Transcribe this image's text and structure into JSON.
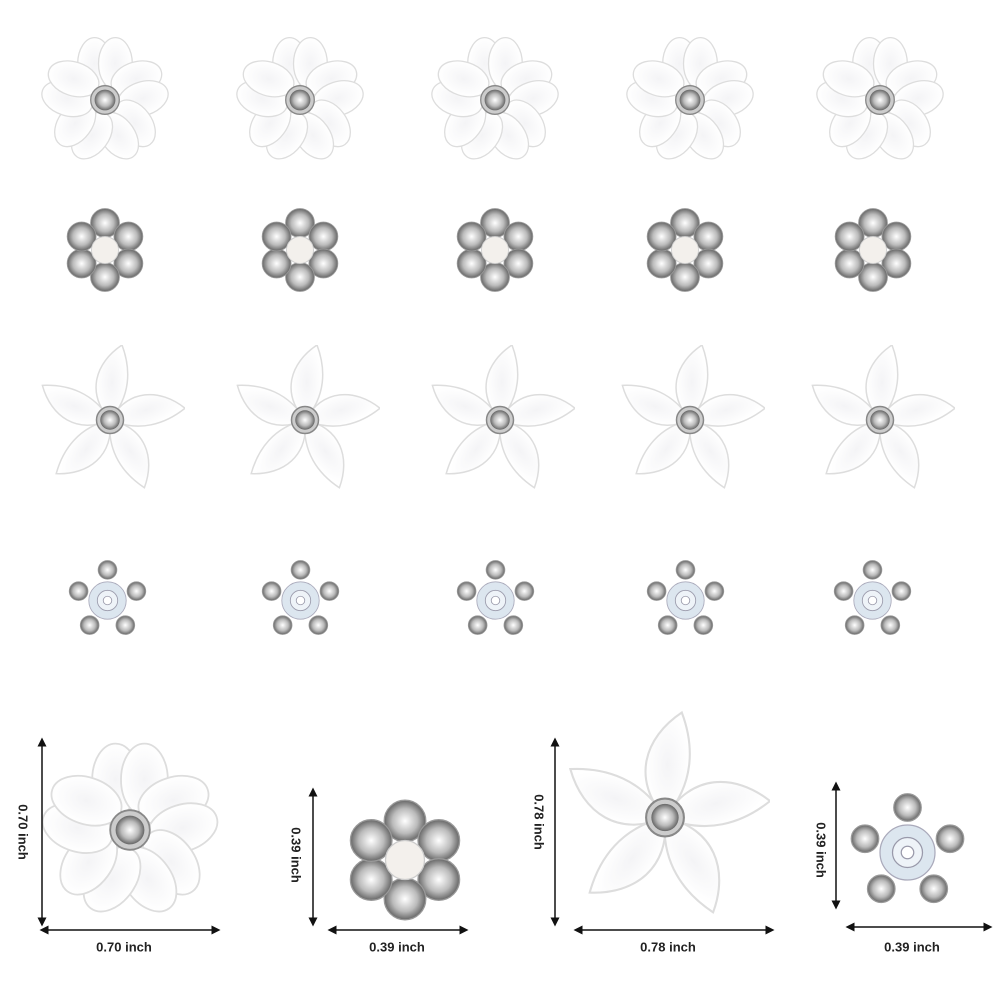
{
  "dimensions": [
    {
      "height": "0.70 inch",
      "width": "0.70 inch"
    },
    {
      "height": "0.39 inch",
      "width": "0.39 inch"
    },
    {
      "height": "0.78 inch",
      "width": "0.78 inch"
    },
    {
      "height": "0.39 inch",
      "width": "0.39 inch"
    }
  ]
}
